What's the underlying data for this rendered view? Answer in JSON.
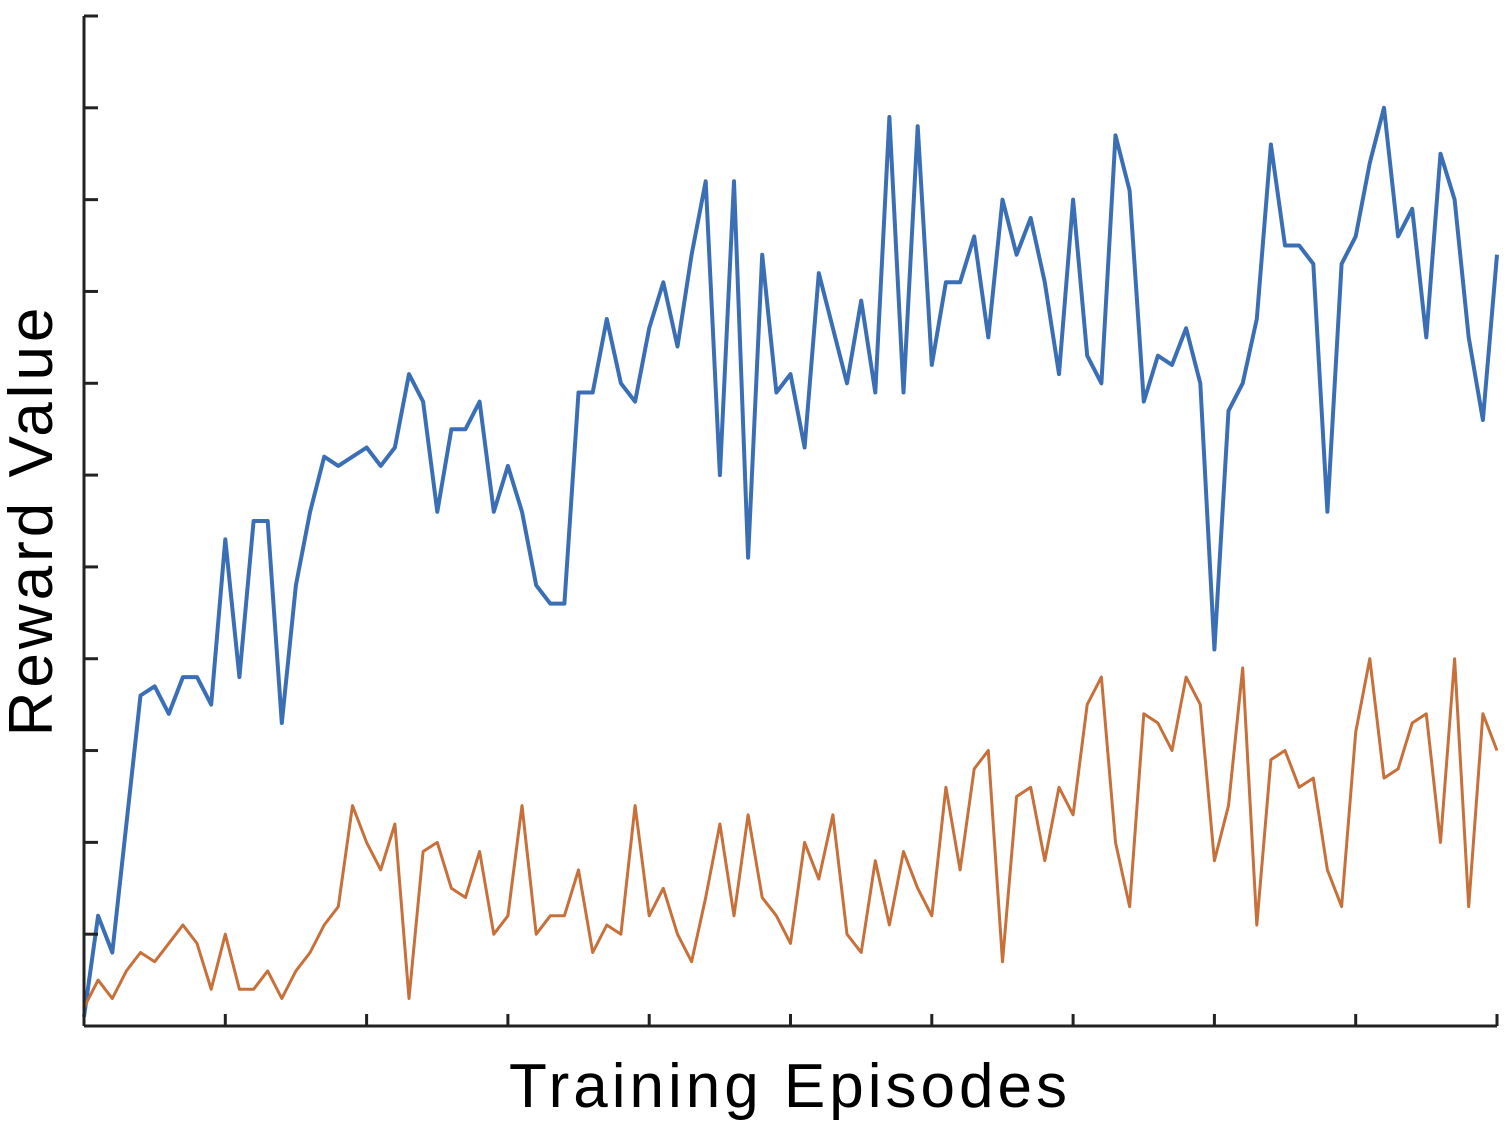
{
  "chart_data": {
    "type": "line",
    "xlabel": "Training Episodes",
    "ylabel": "Reward Value",
    "x_ticks": 11,
    "y_ticks": 12,
    "xlim": [
      0,
      10
    ],
    "ylim": [
      0,
      11
    ],
    "grid": false,
    "legend": "none",
    "x": [
      0.0,
      0.1,
      0.2,
      0.3,
      0.4,
      0.5,
      0.6,
      0.7,
      0.8,
      0.9,
      1.0,
      1.1,
      1.2,
      1.3,
      1.4,
      1.5,
      1.6,
      1.7,
      1.8,
      1.9,
      2.0,
      2.1,
      2.2,
      2.3,
      2.4,
      2.5,
      2.6,
      2.7,
      2.8,
      2.9,
      3.0,
      3.1,
      3.2,
      3.3,
      3.4,
      3.5,
      3.6,
      3.7,
      3.8,
      3.9,
      4.0,
      4.1,
      4.2,
      4.3,
      4.4,
      4.5,
      4.6,
      4.7,
      4.8,
      4.9,
      5.0,
      5.1,
      5.2,
      5.3,
      5.4,
      5.5,
      5.6,
      5.7,
      5.8,
      5.9,
      6.0,
      6.1,
      6.2,
      6.3,
      6.4,
      6.5,
      6.6,
      6.7,
      6.8,
      6.9,
      7.0,
      7.1,
      7.2,
      7.3,
      7.4,
      7.5,
      7.6,
      7.7,
      7.8,
      7.9,
      8.0,
      8.1,
      8.2,
      8.3,
      8.4,
      8.5,
      8.6,
      8.7,
      8.8,
      8.9,
      9.0,
      9.1,
      9.2,
      9.3,
      9.4,
      9.5,
      9.6,
      9.7,
      9.8,
      9.9,
      10.0
    ],
    "series": [
      {
        "color": "#3a6fb5",
        "values": [
          0.1,
          1.2,
          0.8,
          2.2,
          3.6,
          3.7,
          3.4,
          3.8,
          3.8,
          3.5,
          5.3,
          3.8,
          5.5,
          5.5,
          3.3,
          4.8,
          5.6,
          6.2,
          6.1,
          6.2,
          6.3,
          6.1,
          6.3,
          7.1,
          6.8,
          5.6,
          6.5,
          6.5,
          6.8,
          5.6,
          6.1,
          5.6,
          4.8,
          4.6,
          4.6,
          6.9,
          6.9,
          7.7,
          7.0,
          6.8,
          7.6,
          8.1,
          7.4,
          8.4,
          9.2,
          6.0,
          9.2,
          5.1,
          8.4,
          6.9,
          7.1,
          6.3,
          8.2,
          7.6,
          7.0,
          7.9,
          6.9,
          9.9,
          6.9,
          9.8,
          7.2,
          8.1,
          8.1,
          8.6,
          7.5,
          9.0,
          8.4,
          8.8,
          8.1,
          7.1,
          9.0,
          7.3,
          7.0,
          9.7,
          9.1,
          6.8,
          7.3,
          7.2,
          7.6,
          7.0,
          4.1,
          6.7,
          7.0,
          7.7,
          9.6,
          8.5,
          8.5,
          8.3,
          5.6,
          8.3,
          8.6,
          9.4,
          10.0,
          8.6,
          8.9,
          7.5,
          9.5,
          9.0,
          7.5,
          6.6,
          8.4
        ]
      },
      {
        "color": "#c8703a",
        "values": [
          0.2,
          0.5,
          0.3,
          0.6,
          0.8,
          0.7,
          0.9,
          1.1,
          0.9,
          0.4,
          1.0,
          0.4,
          0.4,
          0.6,
          0.3,
          0.6,
          0.8,
          1.1,
          1.3,
          2.4,
          2.0,
          1.7,
          2.2,
          0.3,
          1.9,
          2.0,
          1.5,
          1.4,
          1.9,
          1.0,
          1.2,
          2.4,
          1.0,
          1.2,
          1.2,
          1.7,
          0.8,
          1.1,
          1.0,
          2.4,
          1.2,
          1.5,
          1.0,
          0.7,
          1.4,
          2.2,
          1.2,
          2.3,
          1.4,
          1.2,
          0.9,
          2.0,
          1.6,
          2.3,
          1.0,
          0.8,
          1.8,
          1.1,
          1.9,
          1.5,
          1.2,
          2.6,
          1.7,
          2.8,
          3.0,
          0.7,
          2.5,
          2.6,
          1.8,
          2.6,
          2.3,
          3.5,
          3.8,
          2.0,
          1.3,
          3.4,
          3.3,
          3.0,
          3.8,
          3.5,
          1.8,
          2.4,
          3.9,
          1.1,
          2.9,
          3.0,
          2.6,
          2.7,
          1.7,
          1.3,
          3.2,
          4.0,
          2.7,
          2.8,
          3.3,
          3.4,
          2.0,
          4.0,
          1.3,
          3.4,
          3.0
        ]
      }
    ]
  }
}
